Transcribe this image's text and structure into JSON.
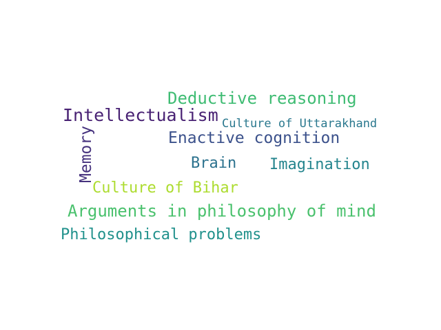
{
  "words": [
    {
      "text": "Deductive reasoning",
      "color": "#3fbc73"
    },
    {
      "text": "Intellectualism",
      "color": "#482173"
    },
    {
      "text": "Culture of Uttarakhand",
      "color": "#2a788e"
    },
    {
      "text": "Enactive cognition",
      "color": "#3b518b"
    },
    {
      "text": "Memory",
      "color": "#46327e"
    },
    {
      "text": "Brain",
      "color": "#2c728e"
    },
    {
      "text": "Imagination",
      "color": "#25858e"
    },
    {
      "text": "Culture of Bihar",
      "color": "#addc30"
    },
    {
      "text": "Arguments in philosophy of mind",
      "color": "#4ac16d"
    },
    {
      "text": "Philosophical problems",
      "color": "#21918c"
    }
  ]
}
